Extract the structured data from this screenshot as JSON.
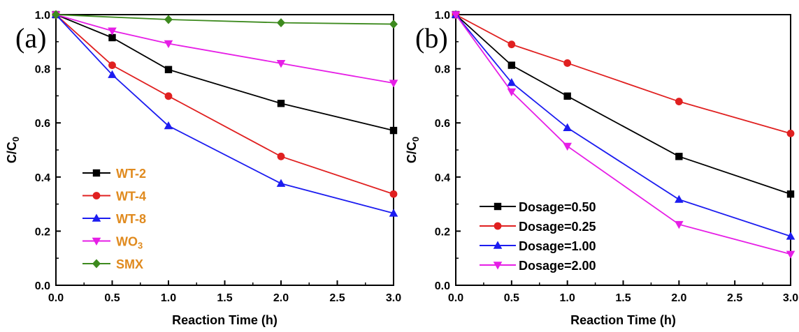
{
  "chart_data": [
    {
      "type": "line",
      "panel_label": "(a)",
      "xlabel": "Reaction Time (h)",
      "ylabel": "C/C",
      "ylabel_sub": "0",
      "xlim": [
        0,
        3
      ],
      "ylim": [
        0,
        1
      ],
      "xticks": [
        "0.0",
        "0.5",
        "1.0",
        "1.5",
        "2.0",
        "2.5",
        "3.0"
      ],
      "yticks": [
        "0.0",
        "0.2",
        "0.4",
        "0.6",
        "0.8",
        "1.0"
      ],
      "legend_position": "bottom-left",
      "legend_text_color": "#e08a1e",
      "x": [
        0,
        0.5,
        1,
        2,
        3
      ],
      "series": [
        {
          "name": "WT-2",
          "name_sub": "",
          "color": "#000000",
          "marker": "square",
          "values": [
            1.0,
            0.915,
            0.797,
            0.672,
            0.572
          ]
        },
        {
          "name": "WT-4",
          "name_sub": "",
          "color": "#e02020",
          "marker": "circle",
          "values": [
            1.0,
            0.813,
            0.699,
            0.476,
            0.337
          ]
        },
        {
          "name": "WT-8",
          "name_sub": "",
          "color": "#1c1cf0",
          "marker": "triangle-up",
          "values": [
            1.0,
            0.778,
            0.589,
            0.376,
            0.266
          ]
        },
        {
          "name": "WO",
          "name_sub": "3",
          "color": "#e61ee6",
          "marker": "triangle-down",
          "values": [
            1.0,
            0.94,
            0.893,
            0.82,
            0.747
          ]
        },
        {
          "name": "SMX",
          "name_sub": "",
          "color": "#3d8a1e",
          "marker": "diamond",
          "values": [
            1.0,
            null,
            0.982,
            0.97,
            0.965
          ]
        }
      ]
    },
    {
      "type": "line",
      "panel_label": "(b)",
      "xlabel": "Reaction Time (h)",
      "ylabel": "C/C",
      "ylabel_sub": "0",
      "xlim": [
        0,
        3
      ],
      "ylim": [
        0,
        1
      ],
      "xticks": [
        "0.0",
        "0.5",
        "1.0",
        "1.5",
        "2.0",
        "2.5",
        "3.0"
      ],
      "yticks": [
        "0.0",
        "0.2",
        "0.4",
        "0.6",
        "0.8",
        "1.0"
      ],
      "legend_position": "bottom-left",
      "legend_text_color": "#000000",
      "x": [
        0,
        0.5,
        1,
        2,
        3
      ],
      "series": [
        {
          "name": "Dosage=0.50",
          "name_sub": "",
          "color": "#000000",
          "marker": "square",
          "values": [
            1.0,
            0.813,
            0.699,
            0.476,
            0.337
          ]
        },
        {
          "name": "Dosage=0.25",
          "name_sub": "",
          "color": "#e02020",
          "marker": "circle",
          "values": [
            1.0,
            0.89,
            0.821,
            0.679,
            0.561
          ]
        },
        {
          "name": "Dosage=1.00",
          "name_sub": "",
          "color": "#1c1cf0",
          "marker": "triangle-up",
          "values": [
            1.0,
            0.749,
            0.582,
            0.317,
            0.181
          ]
        },
        {
          "name": "Dosage=2.00",
          "name_sub": "",
          "color": "#e61ee6",
          "marker": "triangle-down",
          "values": [
            1.0,
            0.715,
            0.514,
            0.225,
            0.115
          ]
        }
      ]
    }
  ]
}
